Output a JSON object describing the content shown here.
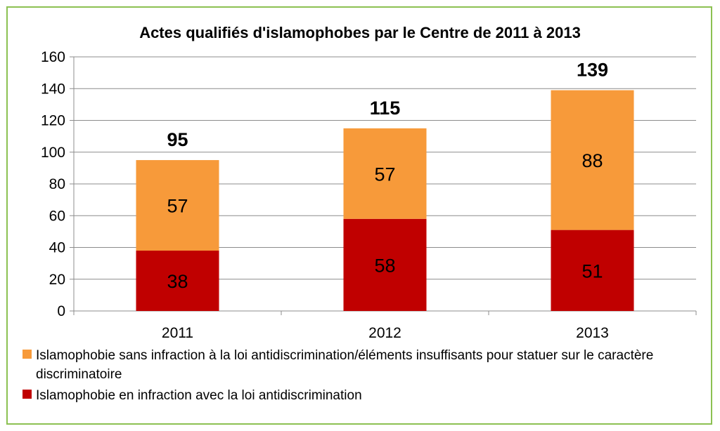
{
  "chart_data": {
    "type": "bar",
    "stacked": true,
    "title": "Actes qualifiés d'islamophobes par le Centre de 2011 à 2013",
    "xlabel": "",
    "ylabel": "",
    "ylim": [
      0,
      160
    ],
    "yticks": [
      "0",
      "20",
      "40",
      "60",
      "80",
      "100",
      "120",
      "140",
      "160"
    ],
    "grid": true,
    "categories": [
      "2011",
      "2012",
      "2013"
    ],
    "series": [
      {
        "name": "Islamophobie en infraction avec la loi antidiscrimination",
        "color": "#c00000",
        "values": [
          38,
          58,
          51
        ],
        "labels": [
          "38",
          "58",
          "51"
        ]
      },
      {
        "name": "Islamophobie sans infraction à la loi antidiscrimination/éléments insuffisants pour statuer sur le caractère discriminatoire",
        "color": "#f79a3a",
        "values": [
          57,
          57,
          88
        ],
        "labels": [
          "57",
          "57",
          "88"
        ]
      }
    ],
    "totals": [
      95,
      115,
      139
    ],
    "total_labels": [
      "95",
      "115",
      "139"
    ],
    "legend_position": "bottom",
    "legend_order": [
      1,
      0
    ]
  }
}
